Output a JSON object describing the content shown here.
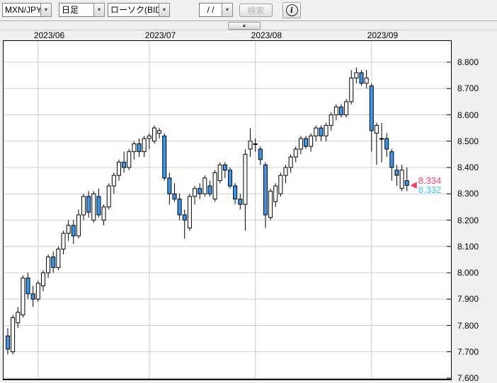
{
  "toolbar": {
    "pair_select": {
      "value": "MXN/JPY"
    },
    "period_select": {
      "value": "日足"
    },
    "type_select": {
      "value": "ローソク(BID)"
    },
    "date_input": {
      "value": "/  /"
    },
    "search_button": "検索"
  },
  "panel_toggle": {
    "icon": "▲"
  },
  "chart_data": {
    "type": "candlestick",
    "pair": "MXN/JPY",
    "period": "daily",
    "price_source": "BID",
    "grid": true,
    "y_axis": {
      "ticks": [
        8.8,
        8.7,
        8.6,
        8.5,
        8.4,
        8.3,
        8.2,
        8.1,
        8.0,
        7.9,
        7.8,
        7.7,
        7.6
      ],
      "decimals": 3,
      "range": [
        7.587,
        8.885
      ],
      "side": "right"
    },
    "x_axis": {
      "months": [
        {
          "label": "2023/06",
          "index": 6
        },
        {
          "label": "2023/07",
          "index": 28
        },
        {
          "label": "2023/08",
          "index": 49
        },
        {
          "label": "2023/09",
          "index": 72
        }
      ]
    },
    "candles": [
      [
        7.76,
        7.79,
        7.69,
        7.71
      ],
      [
        7.7,
        7.84,
        7.69,
        7.83
      ],
      [
        7.81,
        7.87,
        7.79,
        7.85
      ],
      [
        7.84,
        7.99,
        7.83,
        7.98
      ],
      [
        7.98,
        8.0,
        7.9,
        7.92
      ],
      [
        7.92,
        7.95,
        7.87,
        7.9
      ],
      [
        7.9,
        7.97,
        7.89,
        7.96
      ],
      [
        7.95,
        8.01,
        7.93,
        8.0
      ],
      [
        8.0,
        8.07,
        7.98,
        8.06
      ],
      [
        8.06,
        8.08,
        8.0,
        8.02
      ],
      [
        8.02,
        8.1,
        8.01,
        8.09
      ],
      [
        8.09,
        8.16,
        8.07,
        8.15
      ],
      [
        8.15,
        8.2,
        8.12,
        8.18
      ],
      [
        8.18,
        8.2,
        8.11,
        8.14
      ],
      [
        8.14,
        8.24,
        8.13,
        8.22
      ],
      [
        8.22,
        8.3,
        8.2,
        8.29
      ],
      [
        8.29,
        8.31,
        8.21,
        8.23
      ],
      [
        8.2,
        8.31,
        8.19,
        8.3
      ],
      [
        8.29,
        8.32,
        8.21,
        8.22
      ],
      [
        8.2,
        8.26,
        8.18,
        8.25
      ],
      [
        8.25,
        8.34,
        8.24,
        8.33
      ],
      [
        8.33,
        8.38,
        8.3,
        8.37
      ],
      [
        8.37,
        8.43,
        8.35,
        8.42
      ],
      [
        8.42,
        8.46,
        8.38,
        8.4
      ],
      [
        8.4,
        8.47,
        8.39,
        8.46
      ],
      [
        8.46,
        8.5,
        8.43,
        8.49
      ],
      [
        8.49,
        8.51,
        8.44,
        8.46
      ],
      [
        8.46,
        8.52,
        8.44,
        8.51
      ],
      [
        8.51,
        8.53,
        8.47,
        8.52
      ],
      [
        8.5,
        8.56,
        8.49,
        8.55
      ],
      [
        8.53,
        8.55,
        8.51,
        8.54
      ],
      [
        8.52,
        8.53,
        8.35,
        8.36
      ],
      [
        8.36,
        8.38,
        8.26,
        8.3
      ],
      [
        8.3,
        8.34,
        8.27,
        8.28
      ],
      [
        8.28,
        8.3,
        8.2,
        8.22
      ],
      [
        8.22,
        8.24,
        8.13,
        8.2
      ],
      [
        8.17,
        8.3,
        8.16,
        8.29
      ],
      [
        8.29,
        8.33,
        8.26,
        8.32
      ],
      [
        8.32,
        8.34,
        8.28,
        8.3
      ],
      [
        8.3,
        8.37,
        8.29,
        8.36
      ],
      [
        8.33,
        8.35,
        8.29,
        8.3
      ],
      [
        8.28,
        8.39,
        8.27,
        8.38
      ],
      [
        8.35,
        8.42,
        8.34,
        8.41
      ],
      [
        8.41,
        8.42,
        8.36,
        8.39
      ],
      [
        8.39,
        8.4,
        8.32,
        8.33
      ],
      [
        8.33,
        8.34,
        8.26,
        8.28
      ],
      [
        8.28,
        8.3,
        8.24,
        8.26
      ],
      [
        8.26,
        8.47,
        8.16,
        8.45
      ],
      [
        8.47,
        8.55,
        8.44,
        8.5
      ],
      [
        8.49,
        8.51,
        8.46,
        8.49
      ],
      [
        8.47,
        8.48,
        8.41,
        8.43
      ],
      [
        8.41,
        8.42,
        8.17,
        8.22
      ],
      [
        8.21,
        8.32,
        8.2,
        8.31
      ],
      [
        8.27,
        8.34,
        8.25,
        8.33
      ],
      [
        8.3,
        8.38,
        8.29,
        8.37
      ],
      [
        8.37,
        8.41,
        8.34,
        8.4
      ],
      [
        8.4,
        8.45,
        8.38,
        8.44
      ],
      [
        8.44,
        8.48,
        8.42,
        8.47
      ],
      [
        8.47,
        8.52,
        8.45,
        8.51
      ],
      [
        8.51,
        8.52,
        8.47,
        8.48
      ],
      [
        8.48,
        8.53,
        8.46,
        8.52
      ],
      [
        8.52,
        8.56,
        8.5,
        8.55
      ],
      [
        8.55,
        8.56,
        8.5,
        8.52
      ],
      [
        8.52,
        8.57,
        8.5,
        8.56
      ],
      [
        8.56,
        8.61,
        8.54,
        8.6
      ],
      [
        8.6,
        8.64,
        8.58,
        8.63
      ],
      [
        8.63,
        8.64,
        8.59,
        8.6
      ],
      [
        8.6,
        8.66,
        8.59,
        8.65
      ],
      [
        8.65,
        8.77,
        8.64,
        8.74
      ],
      [
        8.74,
        8.78,
        8.72,
        8.76
      ],
      [
        8.76,
        8.77,
        8.71,
        8.72
      ],
      [
        8.72,
        8.77,
        8.7,
        8.74
      ],
      [
        8.71,
        8.72,
        8.46,
        8.54
      ],
      [
        8.53,
        8.57,
        8.41,
        8.56
      ],
      [
        8.51,
        8.57,
        8.42,
        8.51
      ],
      [
        8.51,
        8.53,
        8.44,
        8.47
      ],
      [
        8.46,
        8.47,
        8.35,
        8.4
      ],
      [
        8.39,
        8.41,
        8.33,
        8.37
      ],
      [
        8.32,
        8.41,
        8.31,
        8.39
      ],
      [
        8.35,
        8.4,
        8.31,
        8.332
      ]
    ],
    "last_prices": {
      "ask": {
        "value": "8.334",
        "color": "#f4406e"
      },
      "bid": {
        "value": "8.332",
        "color": "#2fc9f2"
      }
    },
    "colors": {
      "up_fill": "#ffffff",
      "down_fill": "#3a97f0",
      "outline": "#000000",
      "grid": "#cccccc",
      "marker": "#f4406e"
    }
  }
}
